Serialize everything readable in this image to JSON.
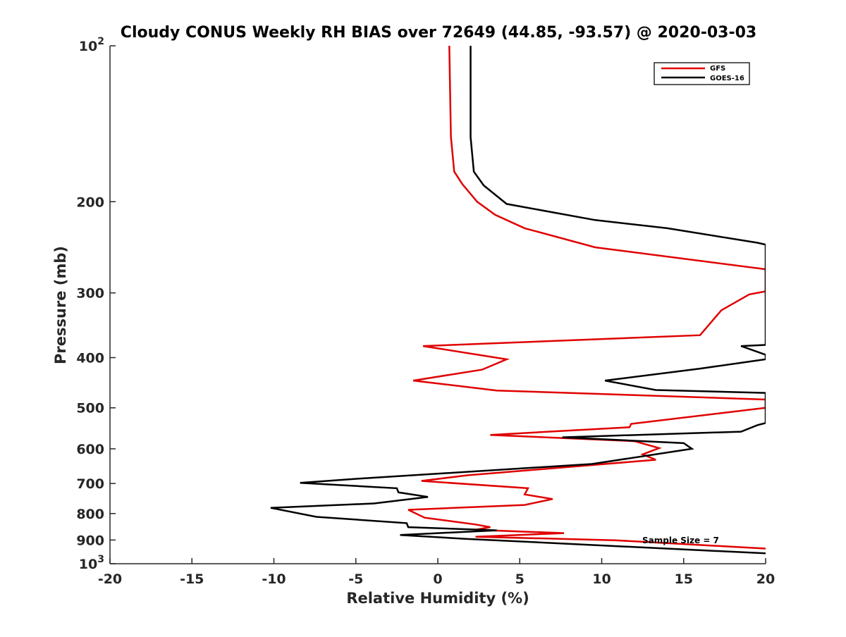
{
  "chart_data": {
    "type": "line",
    "title": "Cloudy CONUS Weekly RH BIAS over 72649 (44.85, -93.57) @ 2020-03-03",
    "xlabel": "Relative Humidity (%)",
    "ylabel": "Pressure (mb)",
    "xlim": [
      -20,
      20
    ],
    "ylim": [
      100,
      1000
    ],
    "y_scale": "log",
    "y_reversed": true,
    "grid": false,
    "legend_position": "top-right",
    "x_ticks": [
      "-20",
      "-15",
      "-10",
      "-5",
      "0",
      "5",
      "10",
      "15",
      "20"
    ],
    "y_ticks": [
      {
        "value": 100,
        "base": "10",
        "exp": "2"
      },
      {
        "value": 200,
        "label": "200"
      },
      {
        "value": 300,
        "label": "300"
      },
      {
        "value": 400,
        "label": "400"
      },
      {
        "value": 500,
        "label": "500"
      },
      {
        "value": 600,
        "label": "600"
      },
      {
        "value": 700,
        "label": "700"
      },
      {
        "value": 800,
        "label": "800"
      },
      {
        "value": 900,
        "label": "900"
      },
      {
        "value": 1000,
        "base": "10",
        "exp": "3"
      }
    ],
    "annotation": "Sample Size = 7",
    "series": [
      {
        "name": "GFS",
        "color": "#e00000",
        "points": [
          [
            0.7,
            100
          ],
          [
            0.8,
            150
          ],
          [
            1.0,
            175
          ],
          [
            1.5,
            185
          ],
          [
            2.4,
            200
          ],
          [
            3.5,
            212
          ],
          [
            5.3,
            225
          ],
          [
            9.6,
            245
          ],
          [
            20,
            270
          ],
          [
            20,
            298
          ],
          [
            19.0,
            302
          ],
          [
            17.3,
            324
          ],
          [
            16.0,
            362
          ],
          [
            -0.9,
            380
          ],
          [
            4.2,
            403
          ],
          [
            2.7,
            422
          ],
          [
            -1.5,
            443
          ],
          [
            3.6,
            463
          ],
          [
            20,
            482
          ],
          [
            20,
            500
          ],
          [
            11.8,
            537
          ],
          [
            11.7,
            545
          ],
          [
            3.2,
            564
          ],
          [
            12.0,
            580
          ],
          [
            13.5,
            598
          ],
          [
            12.5,
            615
          ],
          [
            13.3,
            630
          ],
          [
            1.8,
            675
          ],
          [
            -1.0,
            692
          ],
          [
            5.5,
            715
          ],
          [
            5.3,
            735
          ],
          [
            7.0,
            750
          ],
          [
            5.3,
            770
          ],
          [
            -1.8,
            787
          ],
          [
            -0.8,
            815
          ],
          [
            2.3,
            840
          ],
          [
            3.2,
            850
          ],
          [
            2.3,
            860
          ],
          [
            7.7,
            873
          ],
          [
            2.3,
            887
          ],
          [
            10.8,
            901
          ],
          [
            20,
            935
          ]
        ]
      },
      {
        "name": "GOES-16",
        "color": "#000000",
        "points": [
          [
            2.0,
            100
          ],
          [
            2.0,
            150
          ],
          [
            2.2,
            175
          ],
          [
            2.8,
            186
          ],
          [
            4.2,
            202
          ],
          [
            9.6,
            217
          ],
          [
            14.0,
            225
          ],
          [
            19.5,
            240
          ],
          [
            20,
            242
          ],
          [
            20,
            378
          ],
          [
            18.5,
            380
          ],
          [
            20,
            395
          ],
          [
            20,
            403
          ],
          [
            16.0,
            420
          ],
          [
            10.2,
            443
          ],
          [
            13.3,
            462
          ],
          [
            20,
            468
          ],
          [
            20,
            535
          ],
          [
            19.5,
            540
          ],
          [
            18.5,
            556
          ],
          [
            7.6,
            570
          ],
          [
            15.0,
            585
          ],
          [
            15.5,
            600
          ],
          [
            9.4,
            642
          ],
          [
            -4.8,
            685
          ],
          [
            -8.4,
            698
          ],
          [
            -2.5,
            715
          ],
          [
            -2.4,
            728
          ],
          [
            -0.6,
            743
          ],
          [
            -3.9,
            765
          ],
          [
            -10.2,
            780
          ],
          [
            -7.4,
            812
          ],
          [
            -1.9,
            835
          ],
          [
            -1.8,
            850
          ],
          [
            3.6,
            862
          ],
          [
            -2.3,
            880
          ],
          [
            1.6,
            895
          ],
          [
            20,
            955
          ]
        ]
      }
    ]
  }
}
